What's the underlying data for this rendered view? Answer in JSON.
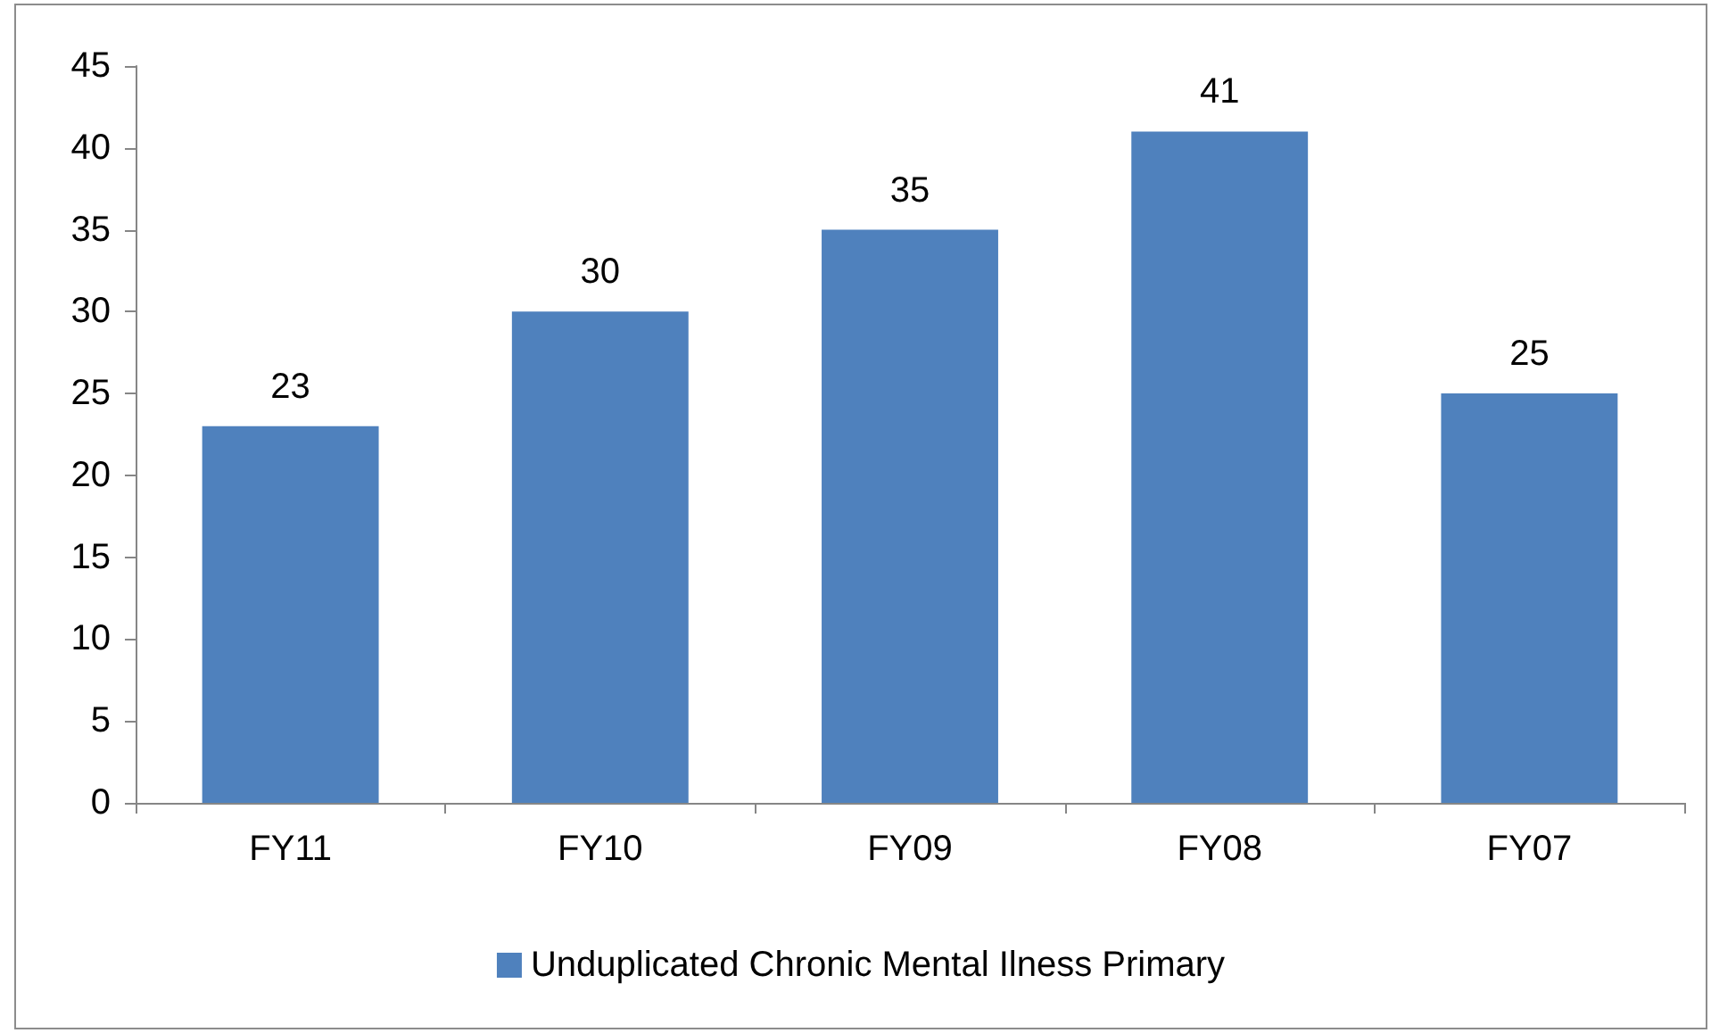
{
  "chart_data": {
    "type": "bar",
    "categories": [
      "FY11",
      "FY10",
      "FY09",
      "FY08",
      "FY07"
    ],
    "series": [
      {
        "name": "Unduplicated Chronic Mental Ilness Primary",
        "color": "#4f81bd",
        "values": [
          23,
          30,
          35,
          41,
          25
        ]
      }
    ],
    "ylim": [
      0,
      45
    ],
    "yticks": [
      0,
      5,
      10,
      15,
      20,
      25,
      30,
      35,
      40,
      45
    ],
    "data_labels": true,
    "grid": false,
    "legend": "bottom"
  }
}
